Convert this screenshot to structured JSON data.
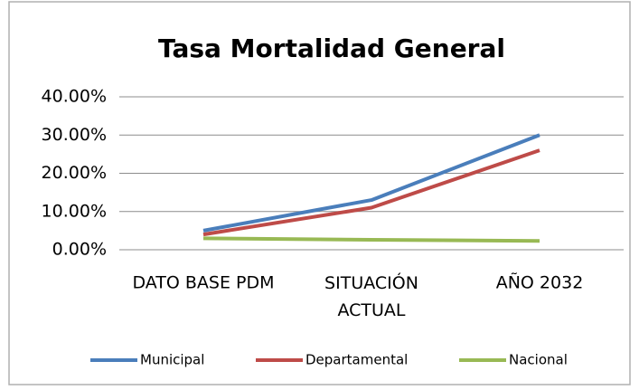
{
  "chart_data": {
    "type": "line",
    "title": "Tasa Mortalidad General",
    "categories": [
      "DATO BASE PDM",
      "SITUACIÓN ACTUAL",
      "AÑO 2032"
    ],
    "series": [
      {
        "name": "Municipal",
        "color": "#4a7ebb",
        "values": [
          5,
          13,
          30
        ]
      },
      {
        "name": "Departamental",
        "color": "#be4b48",
        "values": [
          4,
          11,
          26
        ]
      },
      {
        "name": "Nacional",
        "color": "#98b954",
        "values": [
          3,
          2.6,
          2.3
        ]
      }
    ],
    "ylim": [
      0,
      40
    ],
    "yticks": [
      {
        "value": 0,
        "label": "0.00%"
      },
      {
        "value": 10,
        "label": "10.00%"
      },
      {
        "value": 20,
        "label": "20.00%"
      },
      {
        "value": 30,
        "label": "30.00%"
      },
      {
        "value": 40,
        "label": "40.00%"
      }
    ],
    "grid": true,
    "legend": "bottom"
  }
}
